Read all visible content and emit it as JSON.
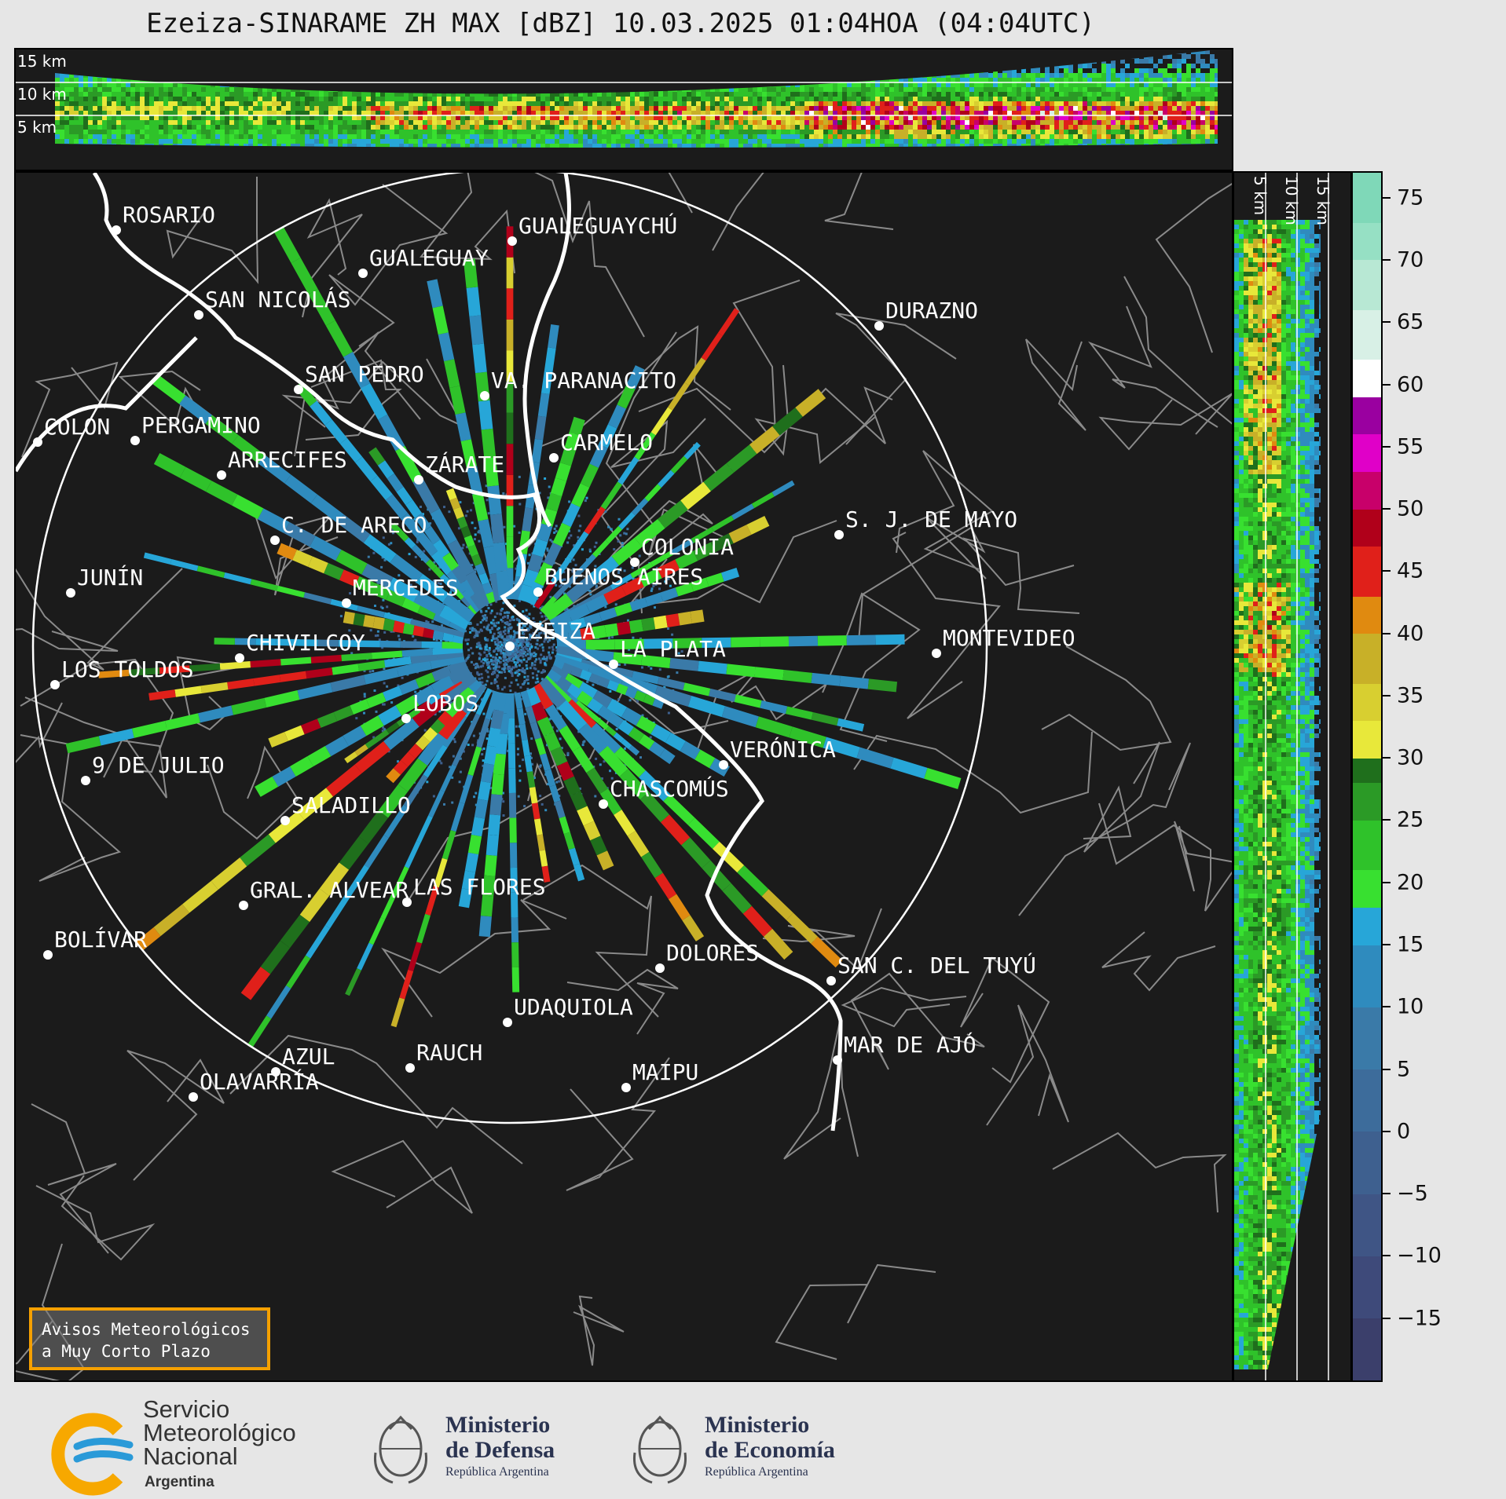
{
  "title": "Ezeiza-SINARAME ZH MAX [dBZ] 10.03.2025 01:04HOA (04:04UTC)",
  "height_levels": [
    "15 km",
    "10 km",
    "5 km"
  ],
  "side_levels": [
    "5 km",
    "10 km",
    "15 km"
  ],
  "colorbar": {
    "ticks": [
      "75",
      "70",
      "65",
      "60",
      "55",
      "50",
      "45",
      "40",
      "35",
      "30",
      "25",
      "20",
      "15",
      "10",
      "5",
      "0",
      "−5",
      "−10",
      "−15"
    ],
    "stops": [
      {
        "from": -20,
        "color": "#3b3f6b"
      },
      {
        "from": -15,
        "color": "#3e4a7a"
      },
      {
        "from": -10,
        "color": "#3f5585"
      },
      {
        "from": -5,
        "color": "#3e608f"
      },
      {
        "from": 0,
        "color": "#3d6c9b"
      },
      {
        "from": 5,
        "color": "#3a7aa8"
      },
      {
        "from": 10,
        "color": "#2f8bbe"
      },
      {
        "from": 15,
        "color": "#27a6d8"
      },
      {
        "from": 18,
        "color": "#38e030"
      },
      {
        "from": 21,
        "color": "#2fc22a"
      },
      {
        "from": 25,
        "color": "#2b9a26"
      },
      {
        "from": 28,
        "color": "#1f6f1c"
      },
      {
        "from": 30,
        "color": "#e8e83a"
      },
      {
        "from": 33,
        "color": "#d8cf30"
      },
      {
        "from": 36,
        "color": "#c8b028"
      },
      {
        "from": 40,
        "color": "#e08a10"
      },
      {
        "from": 43,
        "color": "#e0201a"
      },
      {
        "from": 47,
        "color": "#b0001a"
      },
      {
        "from": 50,
        "color": "#c8006a"
      },
      {
        "from": 53,
        "color": "#e000c8"
      },
      {
        "from": 56,
        "color": "#9a00a0"
      },
      {
        "from": 59,
        "color": "#ffffff"
      },
      {
        "from": 62,
        "color": "#d8f0e6"
      },
      {
        "from": 66,
        "color": "#b8e8d4"
      },
      {
        "from": 70,
        "color": "#96e0c4"
      },
      {
        "from": 73,
        "color": "#7fd8b8"
      }
    ],
    "min": -20,
    "max": 77
  },
  "cities": [
    {
      "name": "ROSARIO",
      "lon": 146,
      "lat": 293
    },
    {
      "name": "GUALEGUAYCHÚ",
      "lon": 650,
      "lat": 307
    },
    {
      "name": "GUALEGUAY",
      "lon": 460,
      "lat": 348
    },
    {
      "name": "SAN NICOLÁS",
      "lon": 251,
      "lat": 401
    },
    {
      "name": "DURAZNO",
      "lon": 1117,
      "lat": 415
    },
    {
      "name": "SAN PEDRO",
      "lon": 378,
      "lat": 496
    },
    {
      "name": "VA. PARANACITO",
      "lon": 615,
      "lat": 504
    },
    {
      "name": "COLON",
      "lon": 46,
      "lat": 563
    },
    {
      "name": "PERGAMINO",
      "lon": 170,
      "lat": 561
    },
    {
      "name": "CARMELO",
      "lon": 703,
      "lat": 583
    },
    {
      "name": "ARRECIFES",
      "lon": 280,
      "lat": 605
    },
    {
      "name": "ZÁRATE",
      "lon": 531,
      "lat": 611
    },
    {
      "name": "S. J. DE MAYO",
      "lon": 1066,
      "lat": 681
    },
    {
      "name": "C. DE ARECO",
      "lon": 348,
      "lat": 688
    },
    {
      "name": "COLONIA",
      "lon": 806,
      "lat": 716
    },
    {
      "name": "BUENOS AIRES",
      "lon": 683,
      "lat": 754
    },
    {
      "name": "JUNÍN",
      "lon": 88,
      "lat": 755
    },
    {
      "name": "MERCEDES",
      "lon": 439,
      "lat": 768
    },
    {
      "name": "EZEIZA",
      "lon": 647,
      "lat": 823
    },
    {
      "name": "MONTEVIDEO",
      "lon": 1190,
      "lat": 832
    },
    {
      "name": "CHIVILCOY",
      "lon": 303,
      "lat": 838
    },
    {
      "name": "LA PLATA",
      "lon": 779,
      "lat": 846
    },
    {
      "name": "LOS TOLDOS",
      "lon": 68,
      "lat": 872
    },
    {
      "name": "LOBOS",
      "lon": 515,
      "lat": 915
    },
    {
      "name": "VERÓNICA",
      "lon": 919,
      "lat": 974
    },
    {
      "name": "9 DE JULIO",
      "lon": 107,
      "lat": 994
    },
    {
      "name": "CHASCOMÚS",
      "lon": 766,
      "lat": 1024
    },
    {
      "name": "SALADILLO",
      "lon": 361,
      "lat": 1045
    },
    {
      "name": "LAS FLORES",
      "lon": 516,
      "lat": 1149
    },
    {
      "name": "GRAL. ALVEAR",
      "lon": 308,
      "lat": 1153
    },
    {
      "name": "BOLÍVAR",
      "lon": 59,
      "lat": 1216
    },
    {
      "name": "DOLORES",
      "lon": 838,
      "lat": 1233
    },
    {
      "name": "SAN C. DEL TUYÚ",
      "lon": 1056,
      "lat": 1249
    },
    {
      "name": "UDAQUIOLA",
      "lon": 644,
      "lat": 1302
    },
    {
      "name": "MAR DE AJÓ",
      "lon": 1064,
      "lat": 1350
    },
    {
      "name": "AZUL",
      "lon": 349,
      "lat": 1365
    },
    {
      "name": "RAUCH",
      "lon": 520,
      "lat": 1360
    },
    {
      "name": "OLAVARRÍA",
      "lon": 244,
      "lat": 1397
    },
    {
      "name": "MAIPU",
      "lon": 795,
      "lat": 1385
    }
  ],
  "warning_box": {
    "line1": "Avisos Meteorológicos",
    "line2": "a Muy Corto Plazo"
  },
  "footer": {
    "smn_line1": "Servicio",
    "smn_line2": "Meteorológico",
    "smn_line3": "Nacional",
    "smn_line4": "Argentina",
    "defensa_line1": "Ministerio",
    "defensa_line2": "de Defensa",
    "defensa_sub": "República Argentina",
    "economia_line1": "Ministerio",
    "economia_line2": "de Economía",
    "economia_sub": "República Argentina"
  },
  "colors": {
    "map_bg": "#1b1b1b",
    "range_ring": "#ffffff",
    "border": "#888888",
    "coast": "#ffffff",
    "accent_box": "#f5a000",
    "smn_yellow": "#f7a800",
    "smn_blue": "#2a9ad8"
  }
}
